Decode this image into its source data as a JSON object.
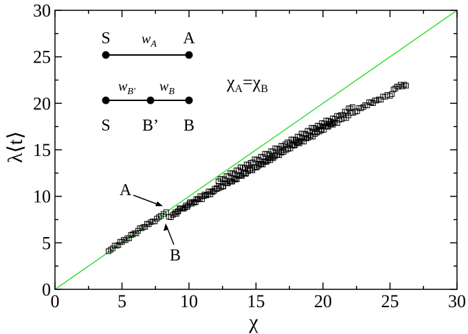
{
  "chart_data": {
    "type": "scatter",
    "xlabel": "χ",
    "ylabel": "λ⟨t⟩",
    "xlim": [
      0,
      30
    ],
    "ylim": [
      0,
      30
    ],
    "xticks": [
      "0",
      "5",
      "10",
      "15",
      "20",
      "25",
      "30"
    ],
    "yticks": [
      "0",
      "5",
      "10",
      "15",
      "20",
      "25",
      "30"
    ],
    "grid": false,
    "reference_line": {
      "x": [
        0,
        30
      ],
      "y": [
        0,
        30
      ],
      "color": "#33dd33"
    },
    "marker": "open-square",
    "marker_color": "#000000",
    "series": [
      {
        "values_x": [
          4.0,
          4.3,
          4.6,
          5.0,
          5.4,
          5.8,
          6.2,
          6.6,
          7.0,
          7.3,
          7.6,
          7.9,
          8.1,
          8.3,
          8.5,
          8.8,
          9.2,
          9.7,
          10.2,
          10.8,
          11.3,
          11.9,
          12.4,
          12.9,
          13.4,
          13.9,
          14.4,
          14.9,
          15.4,
          15.9,
          16.4,
          16.9,
          17.4,
          17.9,
          18.4,
          18.9,
          19.4,
          19.9,
          20.4,
          20.9,
          21.4,
          21.9,
          22.4,
          23.0,
          23.6,
          24.0,
          24.8,
          25.0,
          25.4,
          25.8,
          26.2,
          12.2,
          14.6,
          17.2,
          19.6,
          21.2,
          22.2,
          9.0,
          11.0,
          13.0,
          15.2,
          18.3,
          20.8
        ],
        "values_y": [
          4.1,
          4.4,
          4.7,
          5.1,
          5.5,
          5.9,
          6.3,
          6.7,
          7.0,
          7.3,
          7.6,
          7.9,
          8.1,
          8.3,
          7.8,
          8.0,
          8.4,
          8.8,
          9.2,
          9.7,
          10.1,
          10.6,
          11.0,
          11.4,
          11.8,
          12.3,
          12.7,
          13.1,
          13.5,
          13.9,
          14.3,
          14.7,
          15.1,
          15.5,
          15.9,
          16.3,
          16.7,
          17.1,
          17.5,
          17.9,
          18.3,
          18.7,
          19.1,
          19.6,
          20.1,
          20.3,
          20.9,
          20.8,
          21.6,
          22.0,
          21.9,
          11.6,
          13.6,
          15.6,
          17.6,
          18.6,
          19.6,
          8.3,
          10.0,
          11.6,
          13.3,
          16.0,
          18.0
        ]
      }
    ],
    "annotations": {
      "diagram_a": {
        "left": "S",
        "right": "A",
        "weight": "w",
        "weight_sub": "A"
      },
      "diagram_b": {
        "left": "S",
        "middle": "B’",
        "right": "B",
        "weight1": "w",
        "weight1_sub": "B'",
        "weight2": "w",
        "weight2_sub": "B"
      },
      "equality_label": {
        "chi": "χ",
        "sub1": "A",
        "eq": "=",
        "sub2": "B"
      },
      "point_a_label": "A",
      "point_b_label": "B"
    }
  }
}
